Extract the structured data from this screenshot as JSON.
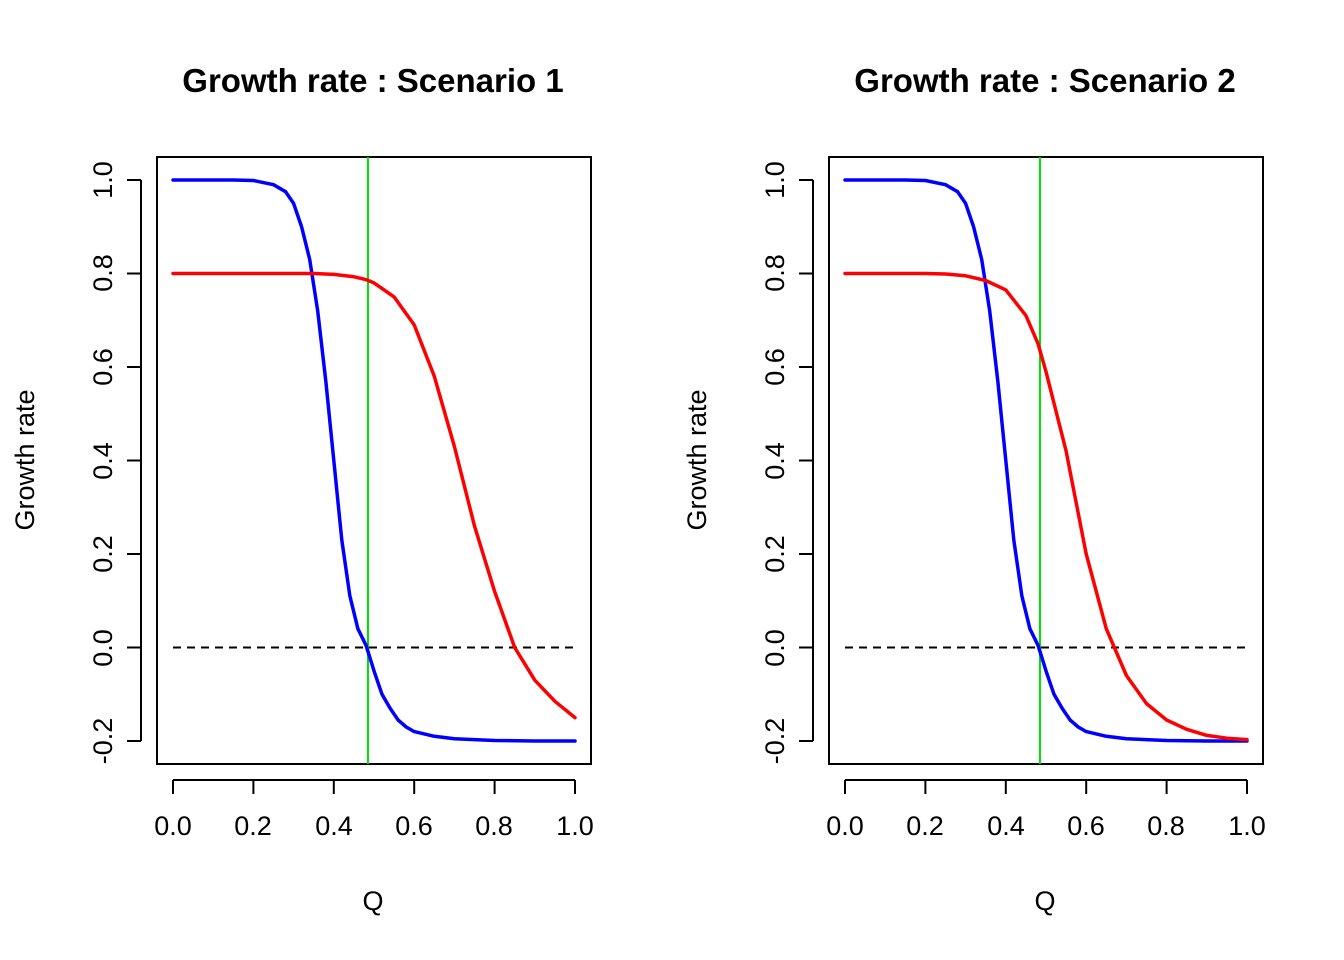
{
  "chart_data": [
    {
      "type": "line",
      "title": "Growth rate : Scenario 1",
      "xlabel": "Q",
      "ylabel": "Growth rate",
      "xlim": [
        0,
        1
      ],
      "ylim": [
        -0.2,
        1.0
      ],
      "xticks": [
        "0.0",
        "0.2",
        "0.4",
        "0.6",
        "0.8",
        "1.0"
      ],
      "yticks": [
        "-0.2",
        "0.0",
        "0.2",
        "0.4",
        "0.6",
        "0.8",
        "1.0"
      ],
      "grid": false,
      "series": [
        {
          "color": "#0000ff",
          "x": [
            0,
            0.05,
            0.1,
            0.15,
            0.2,
            0.25,
            0.28,
            0.3,
            0.32,
            0.34,
            0.36,
            0.38,
            0.4,
            0.42,
            0.44,
            0.46,
            0.48,
            0.5,
            0.52,
            0.54,
            0.56,
            0.58,
            0.6,
            0.65,
            0.7,
            0.8,
            0.9,
            1.0
          ],
          "y": [
            1.0,
            1.0,
            1.0,
            1.0,
            0.999,
            0.99,
            0.975,
            0.95,
            0.9,
            0.83,
            0.72,
            0.57,
            0.4,
            0.23,
            0.11,
            0.04,
            0.005,
            -0.05,
            -0.1,
            -0.13,
            -0.155,
            -0.17,
            -0.18,
            -0.19,
            -0.195,
            -0.199,
            -0.2,
            -0.2
          ]
        },
        {
          "color": "#ff0000",
          "x": [
            0,
            0.1,
            0.2,
            0.3,
            0.35,
            0.4,
            0.45,
            0.48,
            0.5,
            0.55,
            0.6,
            0.65,
            0.7,
            0.75,
            0.8,
            0.85,
            0.9,
            0.95,
            1.0
          ],
          "y": [
            0.8,
            0.8,
            0.8,
            0.8,
            0.8,
            0.798,
            0.793,
            0.787,
            0.78,
            0.75,
            0.69,
            0.58,
            0.43,
            0.26,
            0.12,
            0.0,
            -0.07,
            -0.115,
            -0.15
          ]
        }
      ],
      "reference_lines": [
        {
          "orientation": "vertical",
          "value": 0.485,
          "color": "#00e000",
          "style": "solid"
        },
        {
          "orientation": "horizontal",
          "value": 0.0,
          "color": "#000000",
          "style": "dashed"
        }
      ]
    },
    {
      "type": "line",
      "title": "Growth rate : Scenario 2",
      "xlabel": "Q",
      "ylabel": "Growth rate",
      "xlim": [
        0,
        1
      ],
      "ylim": [
        -0.2,
        1.0
      ],
      "xticks": [
        "0.0",
        "0.2",
        "0.4",
        "0.6",
        "0.8",
        "1.0"
      ],
      "yticks": [
        "-0.2",
        "0.0",
        "0.2",
        "0.4",
        "0.6",
        "0.8",
        "1.0"
      ],
      "grid": false,
      "series": [
        {
          "color": "#0000ff",
          "x": [
            0,
            0.05,
            0.1,
            0.15,
            0.2,
            0.25,
            0.28,
            0.3,
            0.32,
            0.34,
            0.36,
            0.38,
            0.4,
            0.42,
            0.44,
            0.46,
            0.48,
            0.5,
            0.52,
            0.54,
            0.56,
            0.58,
            0.6,
            0.65,
            0.7,
            0.8,
            0.9,
            1.0
          ],
          "y": [
            1.0,
            1.0,
            1.0,
            1.0,
            0.999,
            0.99,
            0.975,
            0.95,
            0.9,
            0.83,
            0.72,
            0.57,
            0.4,
            0.23,
            0.11,
            0.04,
            0.005,
            -0.05,
            -0.1,
            -0.13,
            -0.155,
            -0.17,
            -0.18,
            -0.19,
            -0.195,
            -0.199,
            -0.2,
            -0.2
          ]
        },
        {
          "color": "#ff0000",
          "x": [
            0,
            0.1,
            0.2,
            0.25,
            0.3,
            0.35,
            0.4,
            0.45,
            0.48,
            0.5,
            0.55,
            0.6,
            0.65,
            0.7,
            0.75,
            0.8,
            0.85,
            0.9,
            0.95,
            1.0
          ],
          "y": [
            0.8,
            0.8,
            0.8,
            0.799,
            0.795,
            0.785,
            0.765,
            0.71,
            0.65,
            0.59,
            0.42,
            0.2,
            0.04,
            -0.06,
            -0.12,
            -0.155,
            -0.175,
            -0.188,
            -0.194,
            -0.197
          ]
        }
      ],
      "reference_lines": [
        {
          "orientation": "vertical",
          "value": 0.485,
          "color": "#00e000",
          "style": "solid"
        },
        {
          "orientation": "horizontal",
          "value": 0.0,
          "color": "#000000",
          "style": "dashed"
        }
      ]
    }
  ]
}
